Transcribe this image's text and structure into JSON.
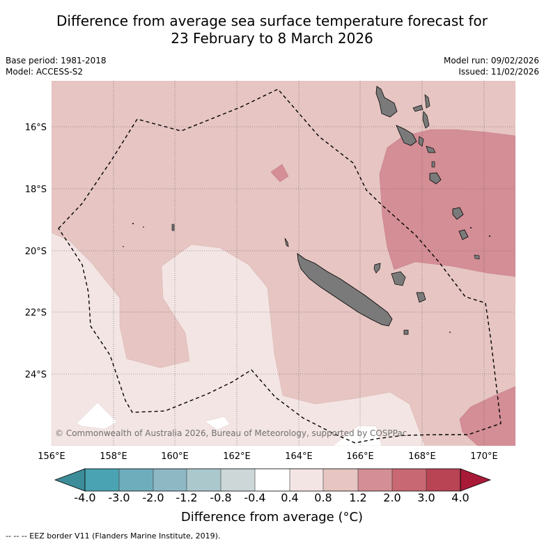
{
  "title": {
    "line1": "Difference from average sea surface temperature forecast for",
    "line2": "23 February to 8 March 2026"
  },
  "meta": {
    "base_period": "Base period: 1981-2018",
    "model": "Model: ACCESS-S2",
    "model_run": "Model run: 09/02/2026",
    "issued": "Issued: 11/02/2026"
  },
  "map": {
    "lon_labels": [
      "156°E",
      "158°E",
      "160°E",
      "162°E",
      "164°E",
      "166°E",
      "168°E",
      "170°E"
    ],
    "lat_labels": [
      "16°S",
      "18°S",
      "20°S",
      "22°S",
      "24°S"
    ],
    "copyright": "© Commonwealth of Australia 2026, Bureau of Meteorology, supported by COSPPac",
    "colors": {
      "anomaly_0_4_0_8": "#f3e5e3",
      "anomaly_0_8_1_2": "#e6c5c2",
      "anomaly_1_2_2_0": "#d48e96",
      "anomaly_neg_0_4_0_4": "#ffffff",
      "land": "#7a7a7a"
    }
  },
  "colorbar": {
    "tick_labels": [
      "-4.0",
      "-3.0",
      "-2.0",
      "-1.2",
      "-0.8",
      "-0.4",
      "0.4",
      "0.8",
      "1.2",
      "2.0",
      "3.0",
      "4.0"
    ],
    "colors": [
      "#3d8c99",
      "#4aa3b2",
      "#6eadbc",
      "#8db8c4",
      "#abc9cd",
      "#cdd7d8",
      "#ffffff",
      "#f3e5e3",
      "#e6c5c2",
      "#d48e96",
      "#c86872",
      "#b84454",
      "#a81a38"
    ],
    "label": "Difference from average (°C)"
  },
  "footer": {
    "eez_legend": "--  --  -- EEZ border V11 (Flanders Marine Institute, 2019)."
  }
}
